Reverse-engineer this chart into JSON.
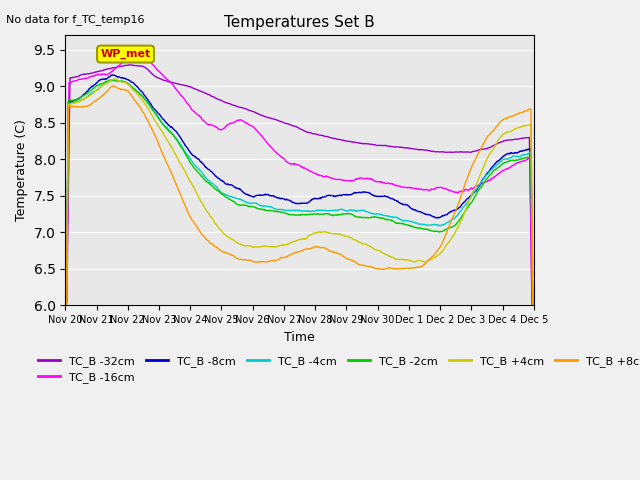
{
  "title": "Temperatures Set B",
  "subtitle": "No data for f_TC_temp16",
  "ylabel": "Temperature (C)",
  "xlabel": "Time",
  "ylim": [
    6.0,
    9.7
  ],
  "yticks": [
    6.0,
    6.5,
    7.0,
    7.5,
    8.0,
    8.5,
    9.0,
    9.5
  ],
  "series_colors": {
    "TC_B -32cm": "#9900cc",
    "TC_B -16cm": "#ff00ff",
    "TC_B -8cm": "#0000cc",
    "TC_B -4cm": "#00cccc",
    "TC_B -2cm": "#00cc00",
    "TC_B +4cm": "#cccc00",
    "TC_B +8cm": "#ff9900"
  },
  "wp_met_box_color": "#ffff00",
  "wp_met_text_color": "#cc0000",
  "fig_bg_color": "#f0f0f0",
  "plot_bg_color": "#e8e8e8",
  "n_points": 1500,
  "xtick_labels": [
    "Nov 20",
    "Nov 21",
    "Nov 22",
    "Nov 23",
    "Nov 24",
    "Nov 25",
    "Nov 26",
    "Nov 27",
    "Nov 28",
    "Nov 29",
    "Nov 30",
    "Dec 1",
    "Dec 2",
    "Dec 3",
    "Dec 4",
    "Dec 5"
  ]
}
